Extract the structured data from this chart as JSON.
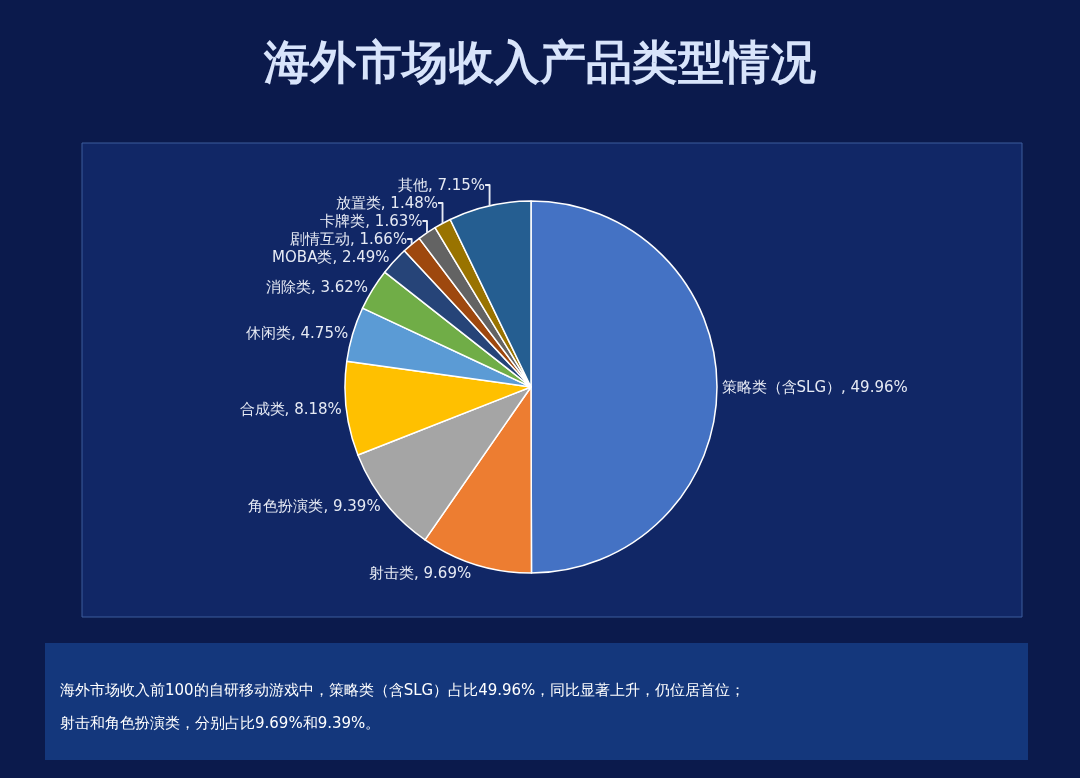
{
  "chart_data": {
    "type": "pie",
    "title": "海外市场收入产品类型情况",
    "categories": [
      "策略类（含SLG）",
      "射击类",
      "角色扮演类",
      "合成类",
      "休闲类",
      "消除类",
      "MOBA类",
      "剧情互动",
      "卡牌类",
      "放置类",
      "其他"
    ],
    "values": [
      49.96,
      9.69,
      9.39,
      8.18,
      4.75,
      3.62,
      2.49,
      1.66,
      1.63,
      1.48,
      7.15
    ],
    "value_labels": [
      "49.96%",
      "9.69%",
      "9.39%",
      "8.18%",
      "4.75%",
      "3.62%",
      "2.49%",
      "1.66%",
      "1.63%",
      "1.48%",
      "7.15%"
    ],
    "colors": [
      "#4472c4",
      "#ed7d31",
      "#a5a5a5",
      "#ffc000",
      "#5b9bd5",
      "#70ad47",
      "#264478",
      "#9e480e",
      "#636363",
      "#997300",
      "#255e91"
    ],
    "annotations": [
      "海外市场收入前100的自研移动游戏中，策略类（含SLG）占比49.96%，同比显著上升，仍位居首位；",
      "射击和角色扮演类，分别占比9.69%和9.39%。"
    ]
  }
}
